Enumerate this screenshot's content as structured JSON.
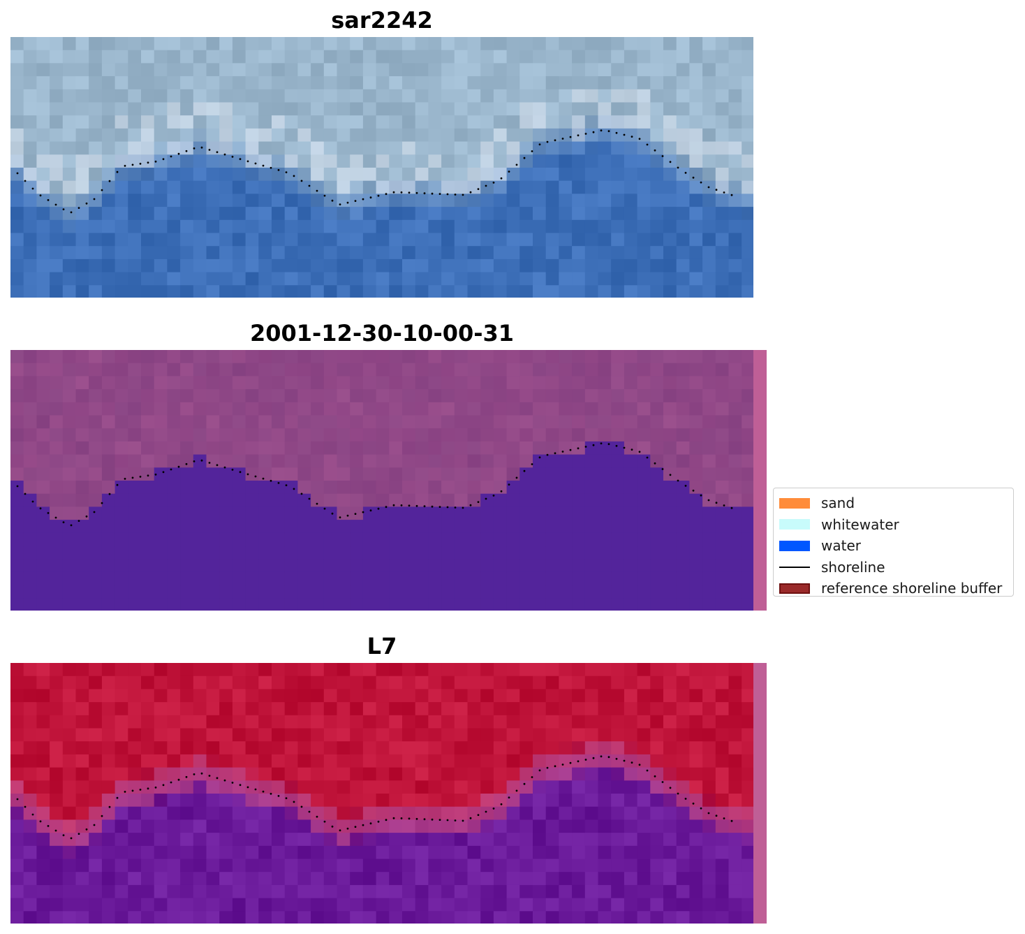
{
  "panels": [
    {
      "title": "sar2242",
      "scene": "rgb"
    },
    {
      "title": "2001-12-30-10-00-31",
      "scene": "classified"
    },
    {
      "title": "L7",
      "scene": "nir"
    }
  ],
  "legend": {
    "items": [
      {
        "label": "sand",
        "kind": "patch",
        "color": "#ff8c3a"
      },
      {
        "label": "whitewater",
        "kind": "patch",
        "color": "#c8fbfb"
      },
      {
        "label": "water",
        "kind": "patch",
        "color": "#0057ff"
      },
      {
        "label": "shoreline",
        "kind": "line",
        "color": "#000000"
      },
      {
        "label": "reference shoreline buffer",
        "kind": "patch",
        "color": "#9a2a2a",
        "border": "#6e1010"
      }
    ]
  },
  "colors": {
    "rgb_land": "#9ab6cc",
    "rgb_water": "#3d6fb8",
    "classified_land": "#8e4a88",
    "classified_water": "#53249b",
    "nir_land": "#c0143a",
    "nir_water": "#6a1a9a",
    "edge_strip": "#bf5f96"
  }
}
